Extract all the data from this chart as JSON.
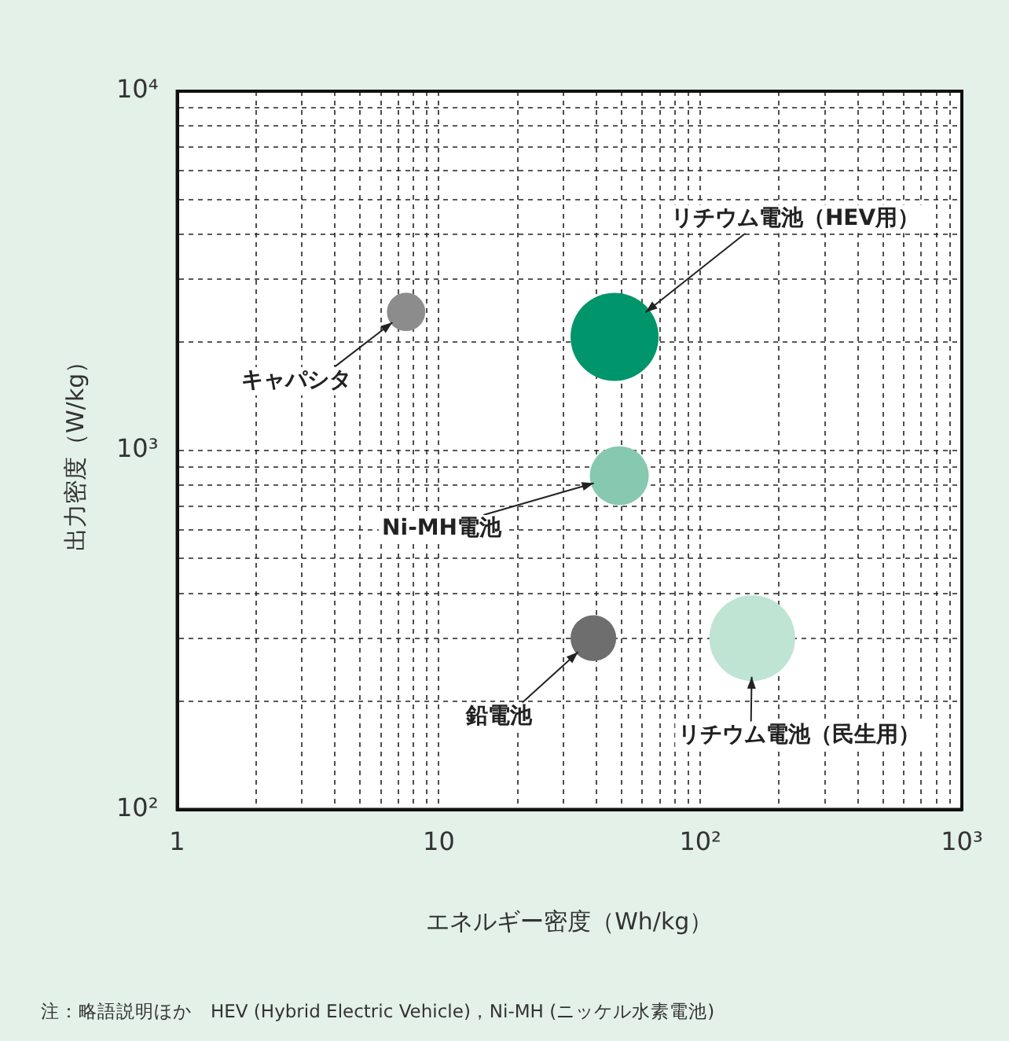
{
  "chart_data": {
    "type": "bubble",
    "xlabel": "エネルギー密度（Wh/kg）",
    "ylabel": "出力密度（W/kg）",
    "log": "xy",
    "grid": true,
    "legend": false,
    "xlim": [
      1,
      1000
    ],
    "ylim": [
      100,
      10000
    ],
    "xticks": [
      1,
      {
        "value": 2,
        "label": null
      },
      {
        "value": 3,
        "label": null
      },
      {
        "value": 4,
        "label": null
      },
      {
        "value": 5,
        "label": null
      },
      {
        "value": 6,
        "label": null
      },
      {
        "value": 7,
        "label": null
      },
      {
        "value": 8,
        "label": null
      },
      {
        "value": 9,
        "label": null
      },
      10,
      {
        "value": 20,
        "label": null
      },
      {
        "value": 30,
        "label": null
      },
      {
        "value": 40,
        "label": null
      },
      {
        "value": 50,
        "label": null
      },
      {
        "value": 60,
        "label": null
      },
      {
        "value": 70,
        "label": null
      },
      {
        "value": 80,
        "label": null
      },
      {
        "value": 90,
        "label": null
      },
      {
        "value": 100,
        "label": "10²"
      },
      {
        "value": 200,
        "label": null
      },
      {
        "value": 300,
        "label": null
      },
      {
        "value": 400,
        "label": null
      },
      {
        "value": 500,
        "label": null
      },
      {
        "value": 600,
        "label": null
      },
      {
        "value": 700,
        "label": null
      },
      {
        "value": 800,
        "label": null
      },
      {
        "value": 900,
        "label": null
      },
      {
        "value": 1000,
        "label": "10³"
      }
    ],
    "yticks": [
      {
        "value": 100,
        "label": "10²"
      },
      {
        "value": 200,
        "label": null
      },
      {
        "value": 300,
        "label": null
      },
      {
        "value": 400,
        "label": null
      },
      {
        "value": 500,
        "label": null
      },
      {
        "value": 600,
        "label": null
      },
      {
        "value": 700,
        "label": null
      },
      {
        "value": 800,
        "label": null
      },
      {
        "value": 900,
        "label": null
      },
      {
        "value": 1000,
        "label": "10³"
      },
      {
        "value": 2000,
        "label": null
      },
      {
        "value": 3000,
        "label": null
      },
      {
        "value": 4000,
        "label": null
      },
      {
        "value": 5000,
        "label": null
      },
      {
        "value": 6000,
        "label": null
      },
      {
        "value": 7000,
        "label": null
      },
      {
        "value": 8000,
        "label": null
      },
      {
        "value": 9000,
        "label": null
      },
      {
        "value": 10000,
        "label": "10⁴"
      }
    ],
    "series": [
      {
        "name": "キャパシタ",
        "color": "#8c8c8c",
        "x": [
          7.5
        ],
        "values": [
          2430
        ],
        "sizes": [
          0.19
        ]
      },
      {
        "name": "リチウム電池（HEV用）",
        "color": "#00956a",
        "x": [
          47
        ],
        "values": [
          2070
        ],
        "sizes": [
          1
        ]
      },
      {
        "name": "Ni-MH電池",
        "color": "#86c9b0",
        "x": [
          49
        ],
        "values": [
          850
        ],
        "sizes": [
          0.45
        ]
      },
      {
        "name": "鉛電池",
        "color": "#6e6e6e",
        "x": [
          39
        ],
        "values": [
          300
        ],
        "sizes": [
          0.27
        ]
      },
      {
        "name": "リチウム電池（民生用）",
        "color": "#c0e4d4",
        "x": [
          158
        ],
        "values": [
          300
        ],
        "sizes": [
          0.95
        ]
      }
    ],
    "annotations": [
      "注：略語説明ほか　HEV (Hybrid Electric Vehicle)，Ni-MH (ニッケル水素電池)"
    ]
  }
}
